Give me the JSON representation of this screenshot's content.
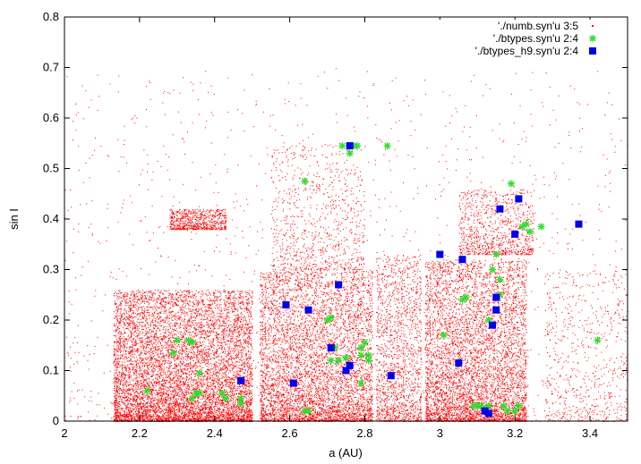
{
  "chart_data": {
    "type": "scatter",
    "xlabel": "a (AU)",
    "ylabel": "sin I",
    "xlim": [
      2.0,
      3.5
    ],
    "ylim": [
      0.0,
      0.8
    ],
    "x_ticks": [
      "2",
      "2.2",
      "2.4",
      "2.6",
      "2.8",
      "3",
      "3.2",
      "3.4"
    ],
    "y_ticks": [
      "0",
      "0.1",
      "0.2",
      "0.3",
      "0.4",
      "0.5",
      "0.6",
      "0.7",
      "0.8"
    ],
    "legend_position": "top-right",
    "grid": false,
    "series": [
      {
        "name": "'./numb.syn'u 3:5",
        "marker": "dot",
        "color": "#ff0000",
        "density_clusters": [
          {
            "x": [
              2.13,
              2.5
            ],
            "y": [
              0.0,
              0.26
            ],
            "n": 9000
          },
          {
            "x": [
              2.28,
              2.43
            ],
            "y": [
              0.38,
              0.42
            ],
            "n": 700
          },
          {
            "x": [
              2.52,
              2.82
            ],
            "y": [
              0.0,
              0.3
            ],
            "n": 9000
          },
          {
            "x": [
              2.55,
              2.8
            ],
            "y": [
              0.3,
              0.55
            ],
            "n": 800
          },
          {
            "x": [
              2.83,
              2.95
            ],
            "y": [
              0.0,
              0.33
            ],
            "n": 1500
          },
          {
            "x": [
              2.96,
              3.23
            ],
            "y": [
              0.0,
              0.32
            ],
            "n": 8000
          },
          {
            "x": [
              3.05,
              3.25
            ],
            "y": [
              0.33,
              0.46
            ],
            "n": 900
          },
          {
            "x": [
              3.28,
              3.5
            ],
            "y": [
              0.0,
              0.3
            ],
            "n": 600
          },
          {
            "x": [
              2.0,
              3.5
            ],
            "y": [
              0.0,
              0.7
            ],
            "n": 1500
          }
        ]
      },
      {
        "name": "'./btypes.syn'u 2:4",
        "marker": "star",
        "color": "#33dd33",
        "points": [
          [
            2.22,
            0.06
          ],
          [
            2.3,
            0.16
          ],
          [
            2.29,
            0.135
          ],
          [
            2.34,
            0.155
          ],
          [
            2.33,
            0.16
          ],
          [
            2.36,
            0.095
          ],
          [
            2.34,
            0.045
          ],
          [
            2.35,
            0.055
          ],
          [
            2.36,
            0.055
          ],
          [
            2.42,
            0.055
          ],
          [
            2.43,
            0.045
          ],
          [
            2.47,
            0.045
          ],
          [
            2.47,
            0.035
          ],
          [
            2.64,
            0.475
          ],
          [
            2.64,
            0.02
          ],
          [
            2.65,
            0.02
          ],
          [
            2.7,
            0.2
          ],
          [
            2.71,
            0.205
          ],
          [
            2.71,
            0.12
          ],
          [
            2.72,
            0.145
          ],
          [
            2.73,
            0.12
          ],
          [
            2.74,
            0.545
          ],
          [
            2.75,
            0.125
          ],
          [
            2.76,
            0.53
          ],
          [
            2.77,
            0.545
          ],
          [
            2.78,
            0.545
          ],
          [
            2.79,
            0.13
          ],
          [
            2.79,
            0.075
          ],
          [
            2.79,
            0.145
          ],
          [
            2.8,
            0.155
          ],
          [
            2.81,
            0.12
          ],
          [
            2.81,
            0.13
          ],
          [
            2.86,
            0.545
          ],
          [
            3.01,
            0.17
          ],
          [
            3.06,
            0.24
          ],
          [
            3.07,
            0.245
          ],
          [
            3.09,
            0.03
          ],
          [
            3.1,
            0.03
          ],
          [
            3.11,
            0.03
          ],
          [
            3.12,
            0.025
          ],
          [
            3.13,
            0.03
          ],
          [
            3.13,
            0.2
          ],
          [
            3.14,
            0.3
          ],
          [
            3.15,
            0.33
          ],
          [
            3.16,
            0.25
          ],
          [
            3.16,
            0.28
          ],
          [
            3.17,
            0.03
          ],
          [
            3.18,
            0.02
          ],
          [
            3.19,
            0.47
          ],
          [
            3.2,
            0.02
          ],
          [
            3.21,
            0.03
          ],
          [
            3.22,
            0.385
          ],
          [
            3.23,
            0.39
          ],
          [
            3.24,
            0.375
          ],
          [
            3.27,
            0.385
          ],
          [
            3.42,
            0.16
          ]
        ]
      },
      {
        "name": "'./btypes_h9.syn'u 2:4",
        "marker": "square",
        "color": "#0000ee",
        "points": [
          [
            2.47,
            0.08
          ],
          [
            2.59,
            0.23
          ],
          [
            2.61,
            0.075
          ],
          [
            2.65,
            0.22
          ],
          [
            2.71,
            0.145
          ],
          [
            2.73,
            0.27
          ],
          [
            2.75,
            0.1
          ],
          [
            2.76,
            0.11
          ],
          [
            2.76,
            0.545
          ],
          [
            2.87,
            0.09
          ],
          [
            3.0,
            0.33
          ],
          [
            3.05,
            0.115
          ],
          [
            3.06,
            0.32
          ],
          [
            3.12,
            0.02
          ],
          [
            3.13,
            0.015
          ],
          [
            3.14,
            0.19
          ],
          [
            3.15,
            0.245
          ],
          [
            3.15,
            0.22
          ],
          [
            3.16,
            0.42
          ],
          [
            3.2,
            0.37
          ],
          [
            3.21,
            0.44
          ],
          [
            3.37,
            0.39
          ]
        ]
      }
    ]
  }
}
